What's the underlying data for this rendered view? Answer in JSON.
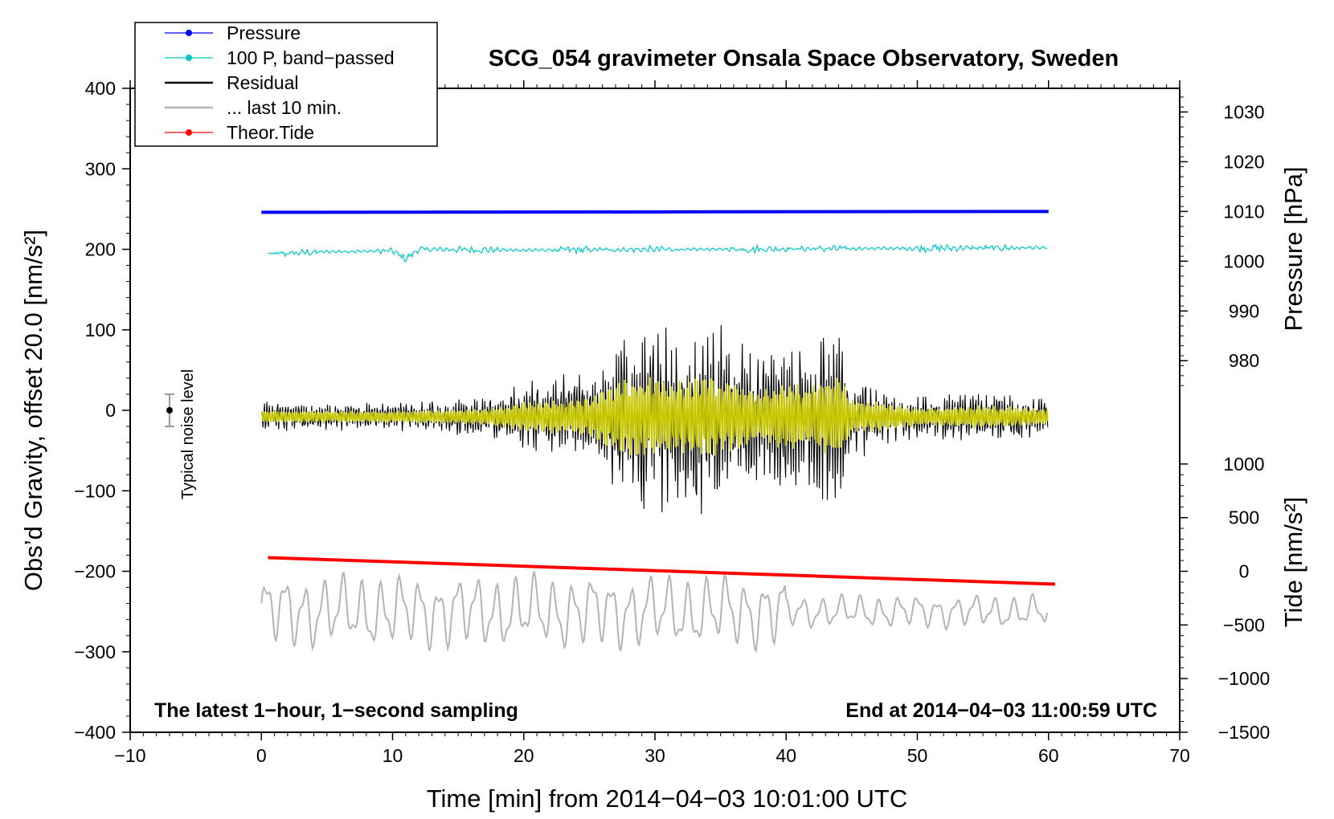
{
  "chart_data": {
    "type": "line",
    "title": "SCG_054 gravimeter Onsala Space Observatory, Sweden",
    "xlabel": "Time [min] from 2014−04−03 10:01:00 UTC",
    "ylabel_left": "Obs’d Gravity, offset 20.0 [nm/s²]",
    "ylabel_right_top": "Pressure [hPa]",
    "ylabel_right_bottom": "Tide [nm/s²]",
    "xlim": [
      -10,
      70
    ],
    "ylim": [
      -400,
      400
    ],
    "x_ticks": [
      -10,
      0,
      10,
      20,
      30,
      40,
      50,
      60,
      70
    ],
    "x_tick_labels": [
      "−10",
      "0",
      "10",
      "20",
      "30",
      "40",
      "50",
      "60",
      "70"
    ],
    "y_ticks": [
      -400,
      -300,
      -200,
      -100,
      0,
      100,
      200,
      300,
      400
    ],
    "y_tick_labels": [
      "−400",
      "−300",
      "−200",
      "−100",
      "0",
      "100",
      "200",
      "300",
      "400"
    ],
    "pressure_axis": {
      "ticks": [
        1030,
        1020,
        1010,
        1000,
        990,
        980
      ],
      "tick_labels": [
        "1030",
        "1020",
        "1010",
        "1000",
        "990",
        "980"
      ],
      "gravity_at_1010": 247,
      "gravity_per_hpa": 6.18
    },
    "tide_axis": {
      "ticks": [
        1000,
        500,
        0,
        -500,
        -1000,
        -1500
      ],
      "tick_labels": [
        "1000",
        "500",
        "0",
        "−500",
        "−1000",
        "−1500"
      ],
      "gravity_at_0": -200,
      "gravity_per_unit": 0.1333
    },
    "series": [
      {
        "name": "Pressure",
        "color": "#0000ff",
        "x_start": 0,
        "x_end": 60,
        "y_start": 246,
        "y_end": 247
      },
      {
        "name": "100 P, band−passed",
        "color": "#00c8c8",
        "x_start": 0.5,
        "x_end": 60,
        "base": 200,
        "envelope": [
          [
            0.5,
            -6
          ],
          [
            5,
            -3
          ],
          [
            10,
            -2
          ],
          [
            11,
            -12
          ],
          [
            12,
            0
          ],
          [
            20,
            -1
          ],
          [
            33,
            0
          ],
          [
            60,
            2
          ]
        ]
      },
      {
        "name": "Residual",
        "color": "#000000",
        "x_start": 0,
        "x_end": 60,
        "center": -8,
        "peaks": [
          [
            0,
            20
          ],
          [
            10,
            18
          ],
          [
            17,
            25
          ],
          [
            20,
            45
          ],
          [
            25,
            60
          ],
          [
            27,
            110
          ],
          [
            28.5,
            130
          ],
          [
            30,
            125
          ],
          [
            32,
            110
          ],
          [
            34,
            135
          ],
          [
            36,
            100
          ],
          [
            38,
            80
          ],
          [
            40,
            100
          ],
          [
            42,
            95
          ],
          [
            44,
            130
          ],
          [
            45,
            55
          ],
          [
            50,
            28
          ],
          [
            55,
            35
          ],
          [
            60,
            25
          ]
        ]
      },
      {
        "name": "... last 10 min.",
        "color": "#b4b4b4",
        "x_start": 0,
        "x_end": 60,
        "center": -250,
        "amplitude": 35
      },
      {
        "name": "Theor.Tide",
        "color": "#ff0000",
        "x_start": 0.5,
        "x_end": 60.5,
        "y_start": -183,
        "y_end": -216
      }
    ],
    "yellow_trace": {
      "color": "#c8c800",
      "center": -8,
      "scale": 0.42
    },
    "legend_position": "top-left",
    "noise_marker": {
      "label": "Typical noise level",
      "x": -7,
      "y": 0,
      "err": 20
    },
    "annotations": {
      "left": "The latest 1−hour, 1−second sampling",
      "right": "End at 2014−04−03 11:00:59 UTC"
    }
  }
}
